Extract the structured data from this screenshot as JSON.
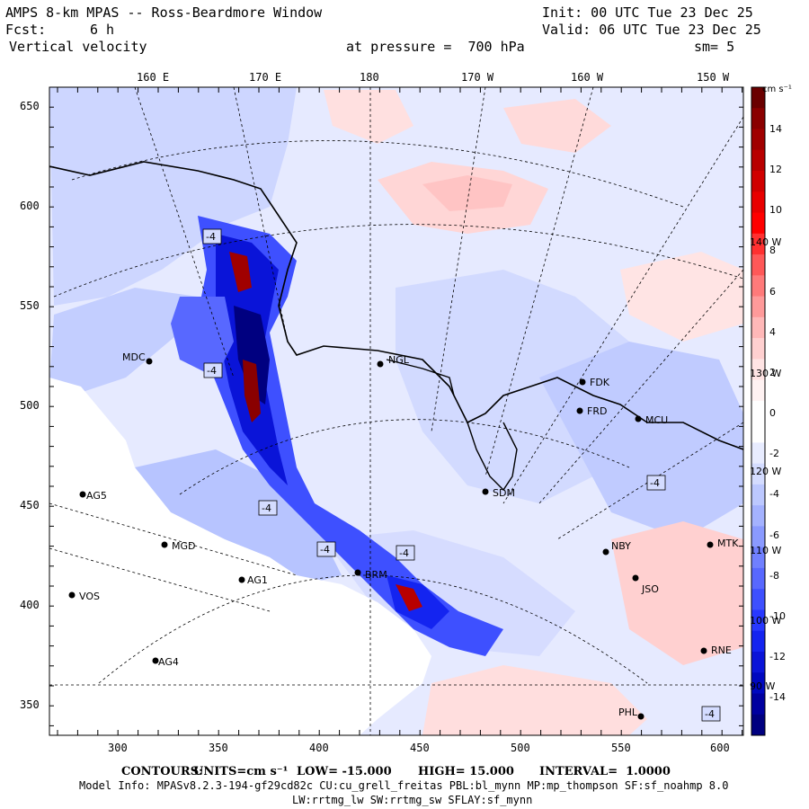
{
  "header": {
    "title": "AMPS 8-km MPAS -- Ross-Beardmore Window",
    "init": "Init: 00 UTC Tue 23 Dec 25",
    "fcst_label": "Fcst:",
    "fcst_value": "6 h",
    "valid": "Valid: 06 UTC Tue 23 Dec 25",
    "field": "Vertical velocity",
    "pressure": "at pressure =  700 hPa",
    "smoothing": "sm= 5"
  },
  "top_axis": [
    "160 E",
    "170 E",
    "180",
    "170 W",
    "160 W",
    "150 W"
  ],
  "left_axis": [
    "650",
    "600",
    "550",
    "500",
    "450",
    "400",
    "350"
  ],
  "bottom_axis": [
    "300",
    "350",
    "400",
    "450",
    "500",
    "550",
    "600"
  ],
  "colorbar": {
    "units": "cm s⁻¹",
    "labels": [
      "14",
      "12",
      "10",
      "8",
      "6",
      "4",
      "2",
      "0",
      "-2",
      "-4",
      "-6",
      "-8",
      "-10",
      "-12",
      "-14"
    ],
    "colors": [
      "#6a0000",
      "#8a0000",
      "#a00000",
      "#b80000",
      "#d00000",
      "#e80000",
      "#ff0000",
      "#ff3030",
      "#ff5858",
      "#ff7a7a",
      "#ff9a9a",
      "#ffb8b8",
      "#ffd0d0",
      "#ffe4e4",
      "#fff2f2",
      "#ffffff",
      "#ffffff",
      "#e8ecff",
      "#d4dcff",
      "#bcc8ff",
      "#a4b2ff",
      "#8a9aff",
      "#7080ff",
      "#5868ff",
      "#3e50ff",
      "#2838ff",
      "#1424f0",
      "#0a14d8",
      "#0008c0",
      "#0000a0",
      "#000080"
    ]
  },
  "stations": [
    {
      "name": "MDC"
    },
    {
      "name": "NGL"
    },
    {
      "name": "FDK"
    },
    {
      "name": "FRD"
    },
    {
      "name": "MCU"
    },
    {
      "name": "AG5"
    },
    {
      "name": "MGD"
    },
    {
      "name": "AG1"
    },
    {
      "name": "VOS"
    },
    {
      "name": "AG4"
    },
    {
      "name": "SDM"
    },
    {
      "name": "NBY"
    },
    {
      "name": "MTK"
    },
    {
      "name": "JSO"
    },
    {
      "name": "BRM"
    },
    {
      "name": "PHL"
    },
    {
      "name": "RNE"
    }
  ],
  "meridian_labels": [
    "140 W",
    "130 W",
    "120 W",
    "110 W",
    "100 W",
    "90 W"
  ],
  "contour_labels": [
    "-4",
    "-4",
    "-4",
    "-4",
    "-4",
    "-4",
    "-4"
  ],
  "footer": {
    "contours_label": "CONTOURS:",
    "units": "UNITS=cm s⁻¹",
    "low": "LOW= -15.000",
    "high": "HIGH= 15.000",
    "interval": "INTERVAL=  1.0000",
    "model_info": "Model Info: MPASv8.2.3-194-gf29cd82c CU:cu_grell_freitas PBL:bl_mynn MP:mp_thompson SF:sf_noahmp 8.0",
    "physics": "LW:rrtmg_lw SW:rrtmg_sw SFLAY:sf_mynn"
  }
}
